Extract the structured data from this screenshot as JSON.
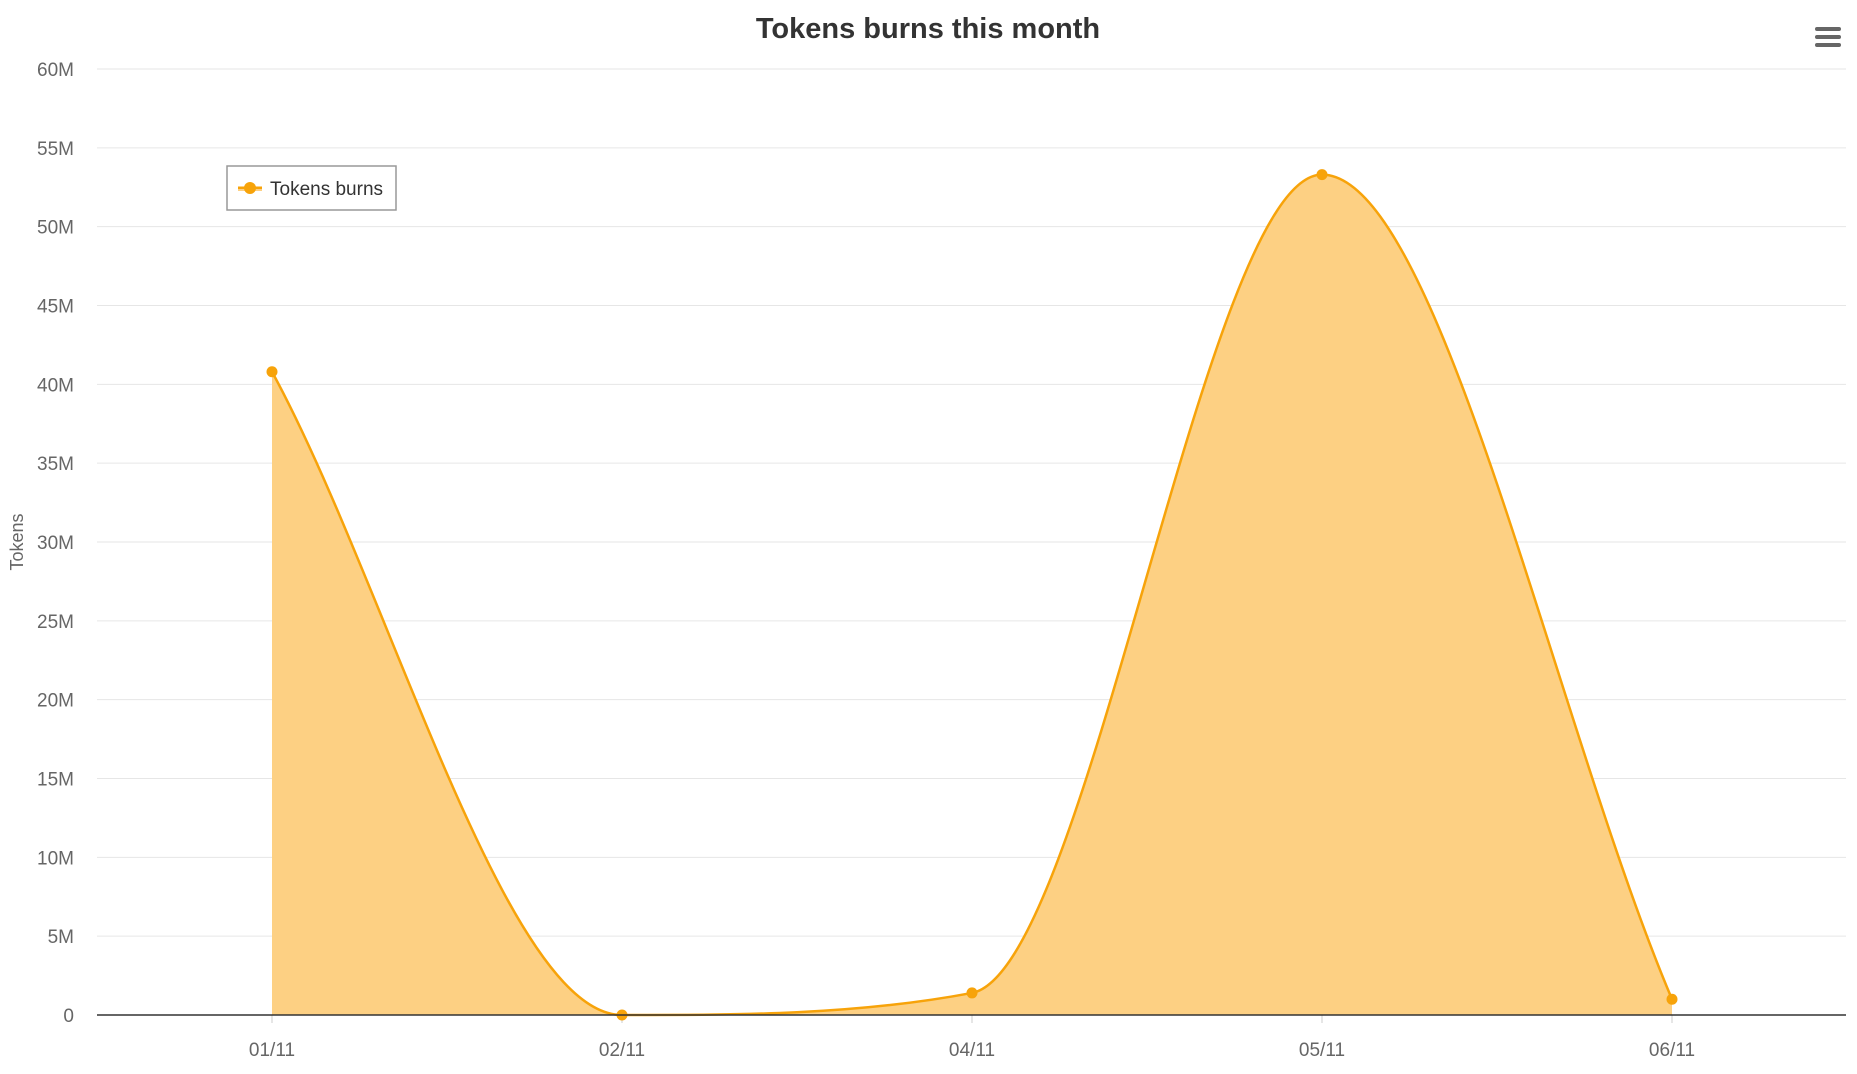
{
  "chart_data": {
    "type": "area",
    "title": "Tokens burns this month",
    "xlabel": "",
    "ylabel": "Tokens",
    "categories": [
      "01/11",
      "02/11",
      "04/11",
      "05/11",
      "06/11"
    ],
    "series": [
      {
        "name": "Tokens burns",
        "values": [
          40800000,
          0,
          1400000,
          53300000,
          1000000
        ]
      }
    ],
    "yticks": [
      "0",
      "5M",
      "10M",
      "15M",
      "20M",
      "25M",
      "30M",
      "35M",
      "40M",
      "45M",
      "50M",
      "55M",
      "60M"
    ],
    "ylim": [
      0,
      60000000
    ],
    "grid": true,
    "legend_position": "top-left",
    "colors": {
      "series": "#f7a30a",
      "fill": "#fdd083",
      "axis": "#333333",
      "grid": "#e6e6e6"
    }
  },
  "menu": {
    "icon": "hamburger-menu-icon"
  }
}
